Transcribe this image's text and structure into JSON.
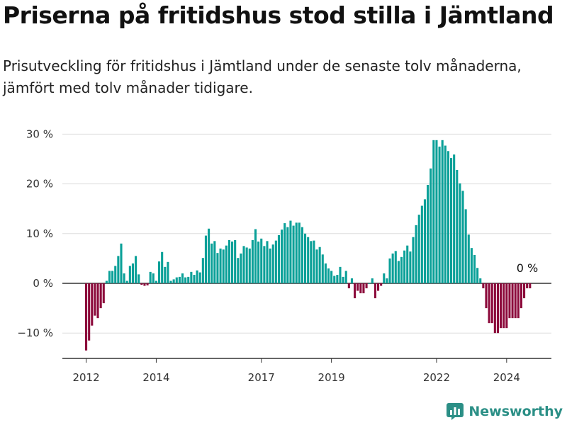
{
  "title": "Priserna på fritidshus stod stilla i Jämtland",
  "subtitle": "Prisutveckling för fritidshus i Jämtland under de senaste tolv månaderna, jämfört med tolv månader tidigare.",
  "brand": "Newsworthy",
  "colors": {
    "positive": "#0aa098",
    "negative": "#8c0a3b",
    "brand": "#2b8f86"
  },
  "chart_data": {
    "type": "bar",
    "annotation": "0 %",
    "ylim": [
      -15,
      31
    ],
    "yticks": [
      -10,
      0,
      10,
      20,
      30
    ],
    "ytick_labels": [
      "−10 %",
      "0 %",
      "10 %",
      "20 %",
      "30 %"
    ],
    "xticks": [
      {
        "label": "2012",
        "index": 0
      },
      {
        "label": "2014",
        "index": 24
      },
      {
        "label": "2017",
        "index": 60
      },
      {
        "label": "2019",
        "index": 84
      },
      {
        "label": "2022",
        "index": 120
      },
      {
        "label": "2024",
        "index": 144
      }
    ],
    "values": [
      -13.5,
      -11.5,
      -8.5,
      -6.5,
      -7,
      -5,
      -4,
      0.5,
      2.5,
      2.5,
      3.5,
      5.5,
      8,
      2,
      0.5,
      3.5,
      4,
      5.5,
      1.8,
      -0.3,
      -0.5,
      -0.4,
      2.3,
      2,
      0.5,
      4.4,
      6.3,
      3.3,
      4.3,
      0.5,
      0.8,
      1.2,
      1.3,
      2,
      1.2,
      1.3,
      2.3,
      1.7,
      2.6,
      2.2,
      5.1,
      9.6,
      11,
      8,
      8.5,
      6.1,
      7,
      6.8,
      7.6,
      8.7,
      8.4,
      8.7,
      5.1,
      6,
      7.5,
      7.2,
      7,
      8.7,
      10.9,
      8.4,
      9,
      7.5,
      8.5,
      7,
      7.8,
      8.6,
      9.7,
      10.8,
      12.1,
      11.3,
      12.6,
      11.6,
      12.2,
      12.2,
      11.3,
      10,
      9.3,
      8.5,
      8.6,
      6.8,
      7.3,
      5.8,
      4,
      3,
      2.5,
      1.5,
      1.7,
      3.3,
      1.3,
      2.5,
      -1,
      1,
      -3,
      -1.5,
      -2,
      -2,
      -1,
      0,
      1,
      -3,
      -1.5,
      -0.5,
      2,
      1,
      5,
      6,
      6.5,
      4.5,
      5.3,
      6.6,
      7.6,
      6.4,
      9.3,
      11.7,
      13.8,
      15.6,
      16.9,
      19.8,
      23.1,
      28.8,
      28.8,
      27.5,
      28.8,
      27.7,
      26.6,
      25.2,
      25.9,
      22.8,
      20.1,
      18.6,
      14.9,
      9.8,
      7.1,
      5.7,
      3.1,
      1,
      -1,
      -5,
      -8,
      -8,
      -10,
      -10,
      -9,
      -9,
      -9,
      -7,
      -7,
      -7,
      -7,
      -5,
      -3,
      -1,
      -1
    ]
  }
}
